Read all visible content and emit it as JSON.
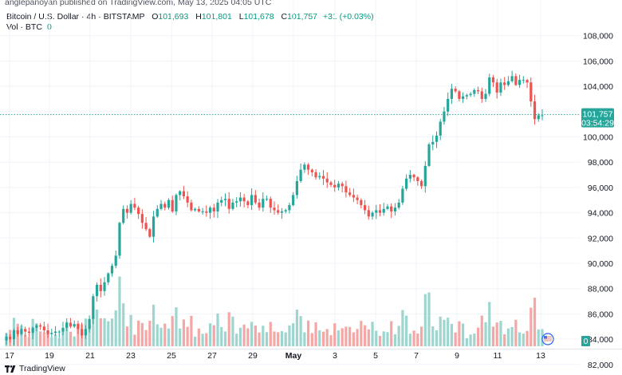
{
  "header": {
    "publisher": "anglepanoyan published on TradingView.com, May 13, 2025 04:05 UTC"
  },
  "legend": {
    "symbol": "Bitcoin / U.S. Dollar",
    "interval": "4h",
    "exchange": "BITSTAMP",
    "open_label": "O",
    "open": "101,693",
    "high_label": "H",
    "high": "101,801",
    "low_label": "L",
    "low": "101,678",
    "close_label": "C",
    "close": "101,757",
    "change": "+31 (+0.03%)",
    "volume_label": "Vol · BTC",
    "volume_value": "0"
  },
  "price_tag": {
    "price": "101,757",
    "countdown": "03:54:29"
  },
  "volume_tag": "0",
  "footer": {
    "brand": "TradingView"
  },
  "colors": {
    "up": "#26a69a",
    "down": "#ef5350",
    "up_vol": "#9ed6cf",
    "down_vol": "#f4a7a5",
    "grid": "#f0f3fa",
    "price_line": "#26a69a"
  },
  "chart_data": {
    "type": "candlestick",
    "interval": "4h",
    "ylim": [
      80000,
      108000
    ],
    "y_ticks": [
      {
        "value": 108000,
        "label": "108,000"
      },
      {
        "value": 106000,
        "label": "106,000"
      },
      {
        "value": 104000,
        "label": "104,000"
      },
      {
        "value": 102000,
        "label": "102,000"
      },
      {
        "value": 100000,
        "label": "100,000"
      },
      {
        "value": 98000,
        "label": "98,000"
      },
      {
        "value": 96000,
        "label": "96,000"
      },
      {
        "value": 94000,
        "label": "94,000"
      },
      {
        "value": 92000,
        "label": "92,000"
      },
      {
        "value": 90000,
        "label": "90,000"
      },
      {
        "value": 88000,
        "label": "88,000"
      },
      {
        "value": 86000,
        "label": "86,000"
      },
      {
        "value": 84000,
        "label": "84,000"
      },
      {
        "value": 82000,
        "label": "82,000"
      }
    ],
    "x_ticks": [
      "17",
      "19",
      "21",
      "23",
      "25",
      "27",
      "29",
      "May",
      "3",
      "5",
      "7",
      "9",
      "11",
      "13"
    ],
    "anchors": [
      [
        84200,
        84000,
        84700,
        84400,
        84800,
        84600,
        84500,
        84900,
        85100,
        85000,
        84700,
        84400
      ],
      [
        84500,
        84600,
        84600,
        84900,
        85300,
        85000,
        85200,
        84800,
        84300,
        84800,
        85600,
        87400
      ],
      [
        88300,
        87800,
        88500,
        89200,
        89800,
        90600,
        93200,
        94300,
        94000,
        94700,
        94400,
        93900
      ],
      [
        93200,
        92700,
        92100,
        93700,
        94300,
        94700,
        94400,
        95000,
        94100,
        95400,
        95700,
        95300
      ],
      [
        94800,
        94200,
        94300,
        94100,
        94100,
        94000,
        94400,
        94100,
        94800,
        95000,
        95100,
        94300
      ],
      [
        94800,
        94900,
        95200,
        94900,
        94600,
        95400,
        94800,
        94400,
        95100,
        95100,
        94400,
        94200
      ],
      [
        94000,
        94100,
        94200,
        94600,
        95400,
        96500,
        97400,
        97800,
        97400,
        97200,
        96800,
        96900
      ],
      [
        96700,
        96400,
        96200,
        96000,
        96300,
        96100,
        95600,
        95400,
        95200,
        95000,
        94600,
        94200
      ],
      [
        93700,
        94000,
        94200,
        94000,
        94300,
        94500,
        94100,
        94400,
        94800,
        95900,
        96700,
        97000
      ],
      [
        96800,
        96500,
        96100,
        97700,
        99400,
        99600,
        100100,
        101200,
        102000,
        103000,
        103800,
        103600
      ],
      [
        103000,
        103200,
        103300,
        103400,
        103700,
        103600,
        103000,
        103400,
        104700,
        104300,
        103500,
        104300
      ],
      [
        104100,
        104400,
        104800,
        104100,
        104500,
        104500,
        104300,
        102800,
        101400,
        101700,
        101700
      ]
    ],
    "volume_note": "Volume bars shown at the bottom of the price pane, up to about 1/4 of the pane height",
    "last": 101757
  }
}
